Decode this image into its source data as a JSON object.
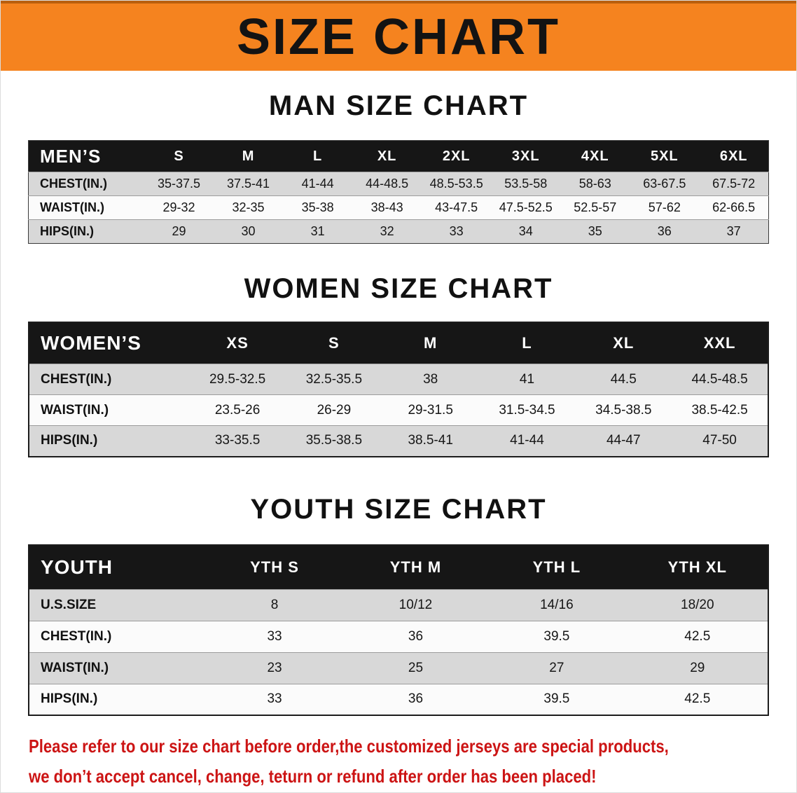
{
  "banner": {
    "title": "SIZE CHART",
    "bg_color": "#f5831f"
  },
  "sections": [
    {
      "id": "men",
      "heading": "MAN SIZE CHART",
      "table": {
        "header": [
          "MEN’S",
          "S",
          "M",
          "L",
          "XL",
          "2XL",
          "3XL",
          "4XL",
          "5XL",
          "6XL"
        ],
        "rows": [
          [
            "CHEST(IN.)",
            "35-37.5",
            "37.5-41",
            "41-44",
            "44-48.5",
            "48.5-53.5",
            "53.5-58",
            "58-63",
            "63-67.5",
            "67.5-72"
          ],
          [
            "WAIST(IN.)",
            "29-32",
            "32-35",
            "35-38",
            "38-43",
            "43-47.5",
            "47.5-52.5",
            "52.5-57",
            "57-62",
            "62-66.5"
          ],
          [
            "HIPS(IN.)",
            "29",
            "30",
            "31",
            "32",
            "33",
            "34",
            "35",
            "36",
            "37"
          ]
        ]
      }
    },
    {
      "id": "women",
      "heading": "WOMEN SIZE CHART",
      "table": {
        "header": [
          "WOMEN’S",
          "XS",
          "S",
          "M",
          "L",
          "XL",
          "XXL"
        ],
        "rows": [
          [
            "CHEST(IN.)",
            "29.5-32.5",
            "32.5-35.5",
            "38",
            "41",
            "44.5",
            "44.5-48.5"
          ],
          [
            "WAIST(IN.)",
            "23.5-26",
            "26-29",
            "29-31.5",
            "31.5-34.5",
            "34.5-38.5",
            "38.5-42.5"
          ],
          [
            "HIPS(IN.)",
            "33-35.5",
            "35.5-38.5",
            "38.5-41",
            "41-44",
            "44-47",
            "47-50"
          ]
        ]
      }
    },
    {
      "id": "youth",
      "heading": "YOUTH SIZE CHART",
      "table": {
        "header": [
          "YOUTH",
          "YTH S",
          "YTH M",
          "YTH L",
          "YTH XL"
        ],
        "rows": [
          [
            "U.S.SIZE",
            "8",
            "10/12",
            "14/16",
            "18/20"
          ],
          [
            "CHEST(IN.)",
            "33",
            "36",
            "39.5",
            "42.5"
          ],
          [
            "WAIST(IN.)",
            "23",
            "25",
            "27",
            "29"
          ],
          [
            "HIPS(IN.)",
            "33",
            "36",
            "39.5",
            "42.5"
          ]
        ]
      }
    }
  ],
  "disclaimer": {
    "color": "#cc1414",
    "lines": [
      "Please refer to our size chart before order,the customized jerseys are special products,",
      "we don’t accept cancel, change, teturn or refund after order has been placed!"
    ]
  }
}
